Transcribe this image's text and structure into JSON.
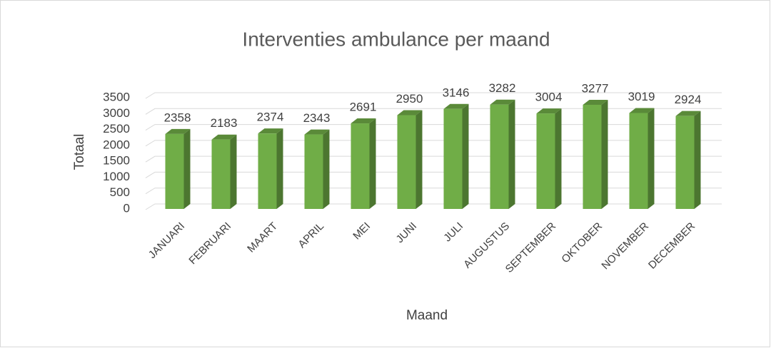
{
  "chart_data": {
    "type": "bar3d",
    "title": "Interventies ambulance per maand",
    "categories": [
      "JANUARI",
      "FEBRUARI",
      "MAART",
      "APRIL",
      "MEI",
      "JUNI",
      "JULI",
      "AUGUSTUS",
      "SEPTEMBER",
      "OKTOBER",
      "NOVEMBER",
      "DECEMBER"
    ],
    "values": [
      2358,
      2183,
      2374,
      2343,
      2691,
      2950,
      3146,
      3282,
      3004,
      3277,
      3019,
      2924
    ],
    "color": "#70ad47",
    "ylim": [
      0,
      3500
    ],
    "yticks": [
      0,
      500,
      1000,
      1500,
      2000,
      2500,
      3000,
      3500
    ],
    "grid": true,
    "y_label": "Totaal",
    "x_label": "Maand"
  }
}
